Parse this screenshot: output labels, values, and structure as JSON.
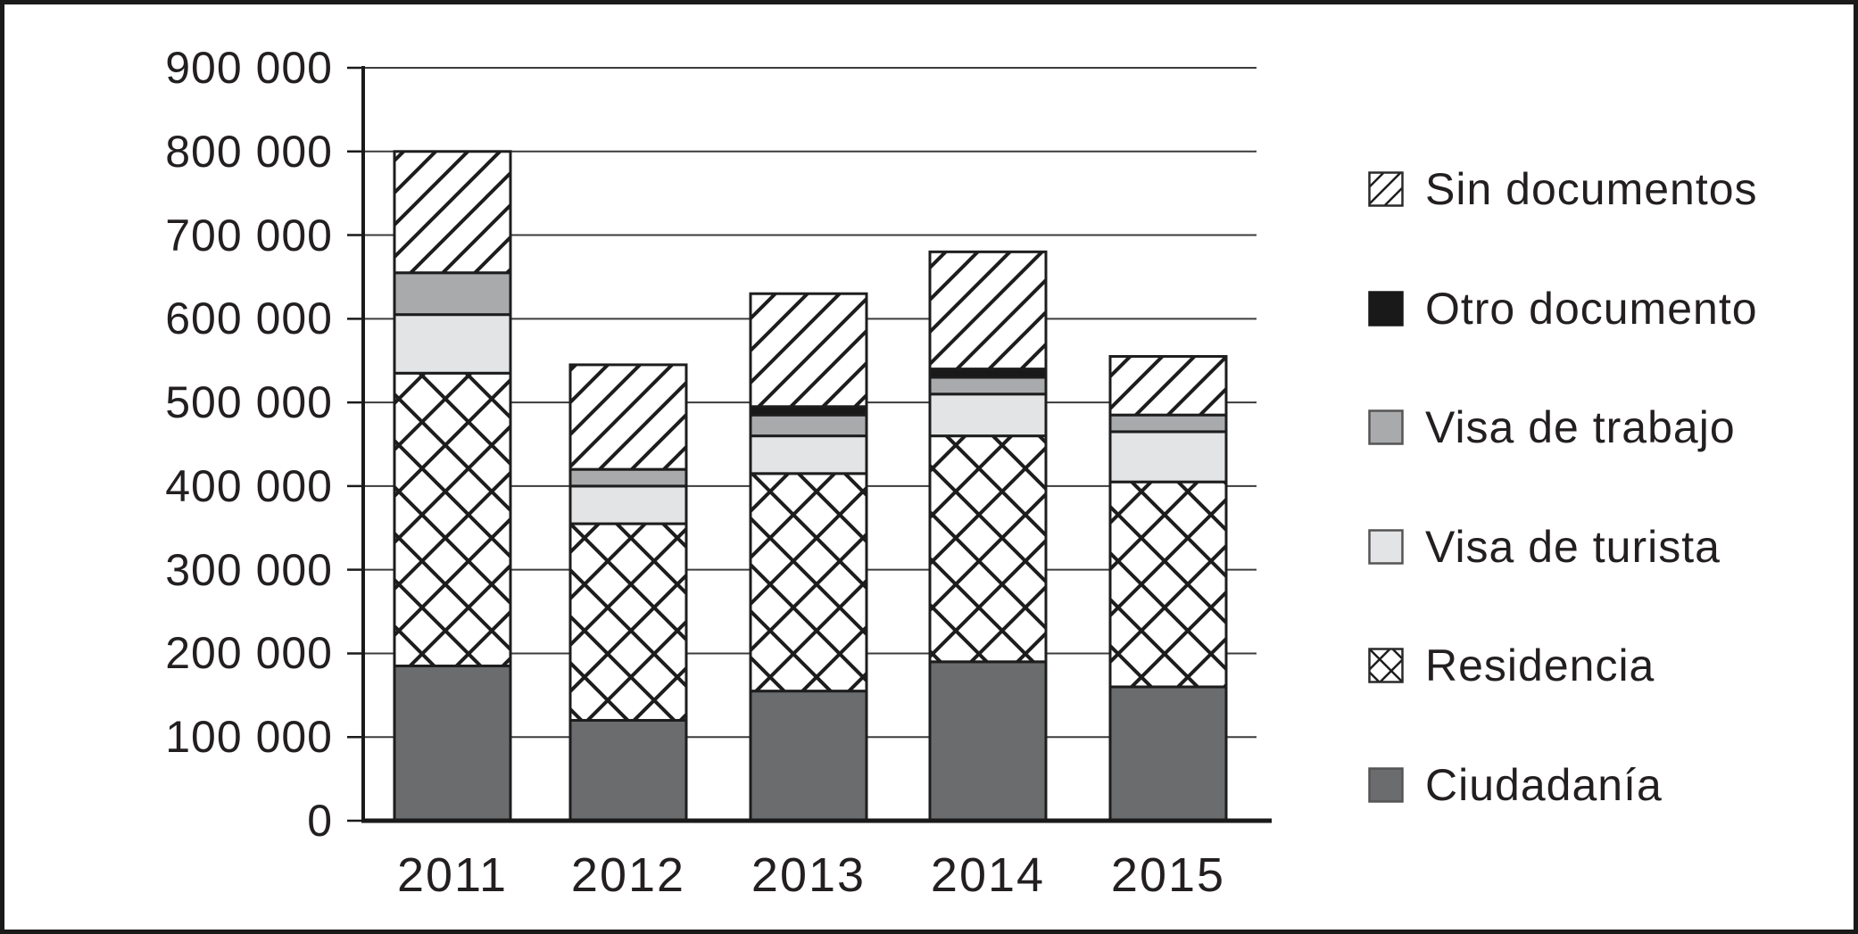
{
  "chart_data": {
    "type": "bar",
    "stacked": true,
    "title": "",
    "xlabel": "",
    "ylabel": "",
    "categories": [
      "2011",
      "2012",
      "2013",
      "2014",
      "2015"
    ],
    "series": [
      {
        "name": "Ciudadanía",
        "fill": "solid",
        "color": "#6b6c6e",
        "values": [
          185000,
          120000,
          155000,
          190000,
          160000
        ]
      },
      {
        "name": "Residencia",
        "fill": "crosshatch",
        "values": [
          350000,
          235000,
          260000,
          270000,
          245000
        ]
      },
      {
        "name": "Visa de turista",
        "fill": "solid",
        "color": "#e3e4e6",
        "values": [
          70000,
          45000,
          45000,
          50000,
          60000
        ]
      },
      {
        "name": "Visa de trabajo",
        "fill": "solid",
        "color": "#a8aaac",
        "values": [
          50000,
          20000,
          25000,
          20000,
          20000
        ]
      },
      {
        "name": "Otro documento",
        "fill": "solid",
        "color": "#191919",
        "values": [
          0,
          0,
          10000,
          10000,
          0
        ]
      },
      {
        "name": "Sin documentos",
        "fill": "diagonal",
        "values": [
          145000,
          125000,
          135000,
          140000,
          70000
        ]
      }
    ],
    "ylim": [
      0,
      900000
    ],
    "ytick_step": 100000,
    "ytick_labels": [
      "0",
      "100 000",
      "200 000",
      "300 000",
      "400 000",
      "500 000",
      "600 000",
      "700 000",
      "800 000",
      "900 000"
    ],
    "grid": "horizontal",
    "legend_position": "right",
    "legend_order": [
      "Sin documentos",
      "Otro documento",
      "Visa de trabajo",
      "Visa de turista",
      "Residencia",
      "Ciudadanía"
    ]
  },
  "colors": {
    "background": "#ffffff",
    "frame_border": "#1a1a1a",
    "grid_line": "#3c3c3c",
    "axis": "#1a1a1a",
    "pattern_stroke": "#1d1d1d",
    "segment_border": "#1d1d1d",
    "text": "#231f20"
  }
}
